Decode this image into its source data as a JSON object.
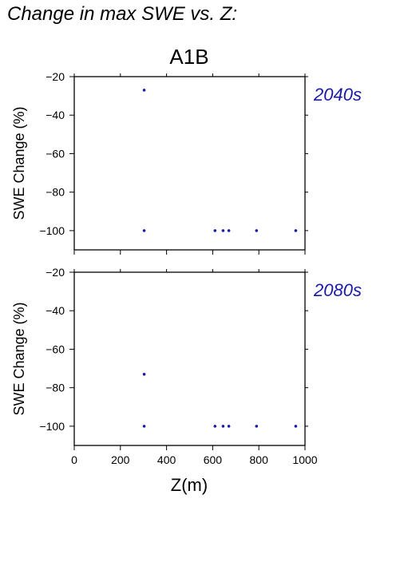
{
  "page_title": "Change in max SWE vs. Z:",
  "scenario_title": "A1B",
  "xlabel": "Z(m)",
  "marker_color": "#1a1aa8",
  "period_label_color": "#1a1aa8",
  "chart_data": [
    {
      "type": "scatter",
      "period_label": "2040s",
      "xlabel": "Z(m)",
      "ylabel": "SWE Change (%)",
      "xlim": [
        0,
        1000
      ],
      "ylim": [
        -110,
        -20
      ],
      "x_ticks": [
        0,
        200,
        400,
        600,
        800,
        1000
      ],
      "y_ticks": [
        -20,
        -40,
        -60,
        -80,
        -100
      ],
      "x_tick_labels_shown": false,
      "points": [
        {
          "x": 303,
          "y": -27
        },
        {
          "x": 303,
          "y": -100
        },
        {
          "x": 610,
          "y": -100
        },
        {
          "x": 645,
          "y": -100
        },
        {
          "x": 670,
          "y": -100
        },
        {
          "x": 790,
          "y": -100
        },
        {
          "x": 960,
          "y": -100
        }
      ]
    },
    {
      "type": "scatter",
      "period_label": "2080s",
      "xlabel": "Z(m)",
      "ylabel": "SWE Change (%)",
      "xlim": [
        0,
        1000
      ],
      "ylim": [
        -110,
        -20
      ],
      "x_ticks": [
        0,
        200,
        400,
        600,
        800,
        1000
      ],
      "y_ticks": [
        -20,
        -40,
        -60,
        -80,
        -100
      ],
      "x_tick_labels_shown": true,
      "points": [
        {
          "x": 303,
          "y": -73
        },
        {
          "x": 303,
          "y": -100
        },
        {
          "x": 610,
          "y": -100
        },
        {
          "x": 645,
          "y": -100
        },
        {
          "x": 670,
          "y": -100
        },
        {
          "x": 790,
          "y": -100
        },
        {
          "x": 960,
          "y": -100
        }
      ]
    }
  ]
}
